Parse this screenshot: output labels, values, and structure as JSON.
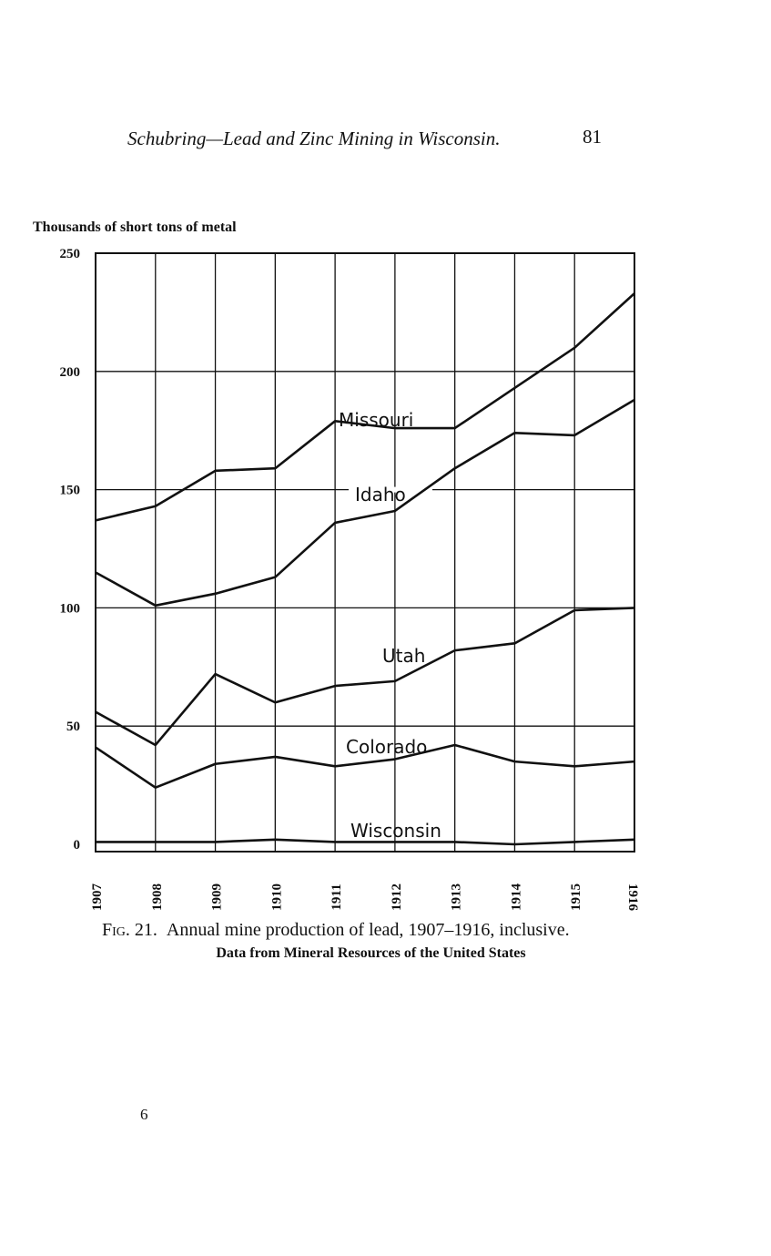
{
  "page": {
    "header": "Schubring—Lead and Zinc Mining in Wisconsin.",
    "page_number": "81",
    "caption_fig": "Fig. 21.",
    "caption_text": "Annual mine production of lead, 1907–1916, inclusive.",
    "subcaption": "Data from Mineral Resources of the United States",
    "footer_mark": "6"
  },
  "chart_data": {
    "type": "line",
    "title": "Annual mine production of lead, 1907–1916, inclusive.",
    "ylabel": "Thousands of short tons of metal",
    "xlabel": "",
    "x": [
      "1907",
      "1908",
      "1909",
      "1910",
      "1911",
      "1912",
      "1913",
      "1914",
      "1915",
      "1916"
    ],
    "ylim": [
      0,
      250
    ],
    "yticks": [
      "0",
      "50",
      "100",
      "150",
      "200",
      "250"
    ],
    "grid": true,
    "series": [
      {
        "name": "Missouri",
        "values": [
          137,
          143,
          158,
          159,
          179,
          176,
          176,
          193,
          210,
          233
        ]
      },
      {
        "name": "Idaho",
        "values": [
          115,
          101,
          106,
          113,
          136,
          141,
          159,
          174,
          173,
          188
        ]
      },
      {
        "name": "Utah",
        "values": [
          56,
          42,
          72,
          60,
          67,
          69,
          82,
          85,
          99,
          100
        ]
      },
      {
        "name": "Colorado",
        "values": [
          41,
          24,
          34,
          37,
          33,
          36,
          42,
          35,
          33,
          35
        ]
      },
      {
        "name": "Wisconsin",
        "values": [
          1,
          1,
          1,
          2,
          1,
          1,
          1,
          0,
          1,
          2
        ]
      }
    ]
  }
}
